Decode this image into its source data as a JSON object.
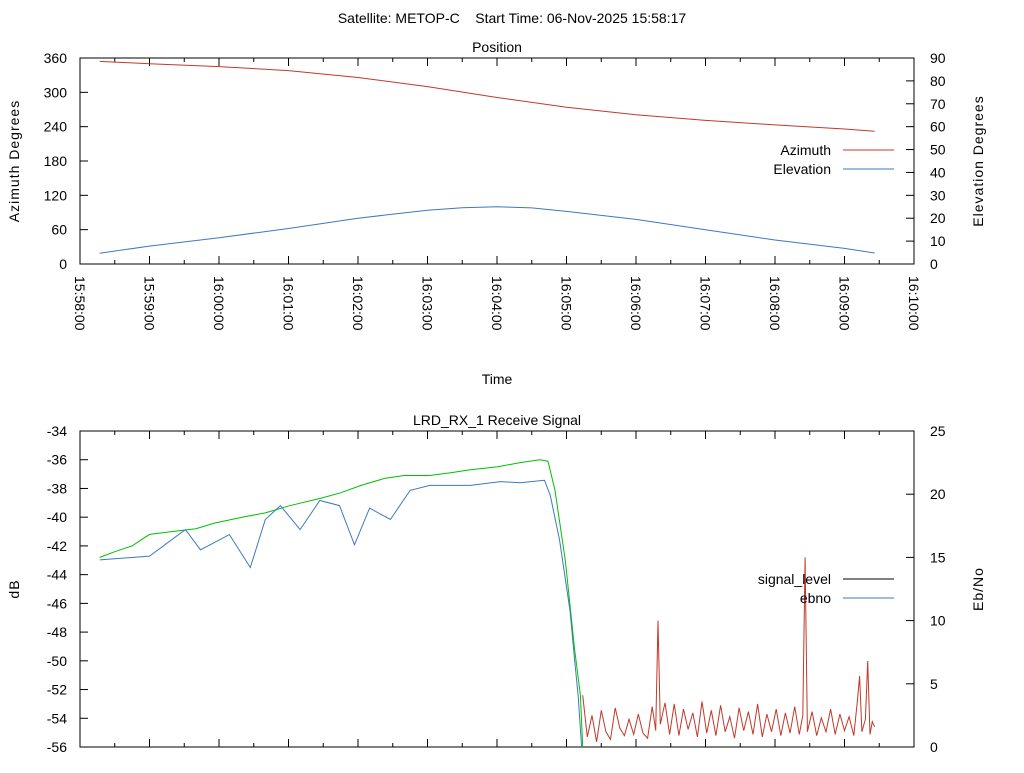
{
  "title": "Satellite: METOP-C    Start Time: 06-Nov-2025 15:58:17",
  "chart_data": [
    {
      "type": "line",
      "title": "Position",
      "xlabel": "Time",
      "ylabel": "Azimuth Degrees",
      "y2label": "Elevation Degrees",
      "x_unit": "seconds after 15:58:00",
      "xlim": [
        0,
        720
      ],
      "ylim": [
        0,
        360
      ],
      "y2lim": [
        0,
        90
      ],
      "xticks": [
        0,
        60,
        120,
        180,
        240,
        300,
        360,
        420,
        480,
        540,
        600,
        660,
        720
      ],
      "xtick_labels": [
        "15:58:00",
        "15:59:00",
        "16:00:00",
        "16:01:00",
        "16:02:00",
        "16:03:00",
        "16:04:00",
        "16:05:00",
        "16:06:00",
        "16:07:00",
        "16:08:00",
        "16:09:00",
        "16:10:00"
      ],
      "yticks": [
        0,
        60,
        120,
        180,
        240,
        300,
        360
      ],
      "y2ticks": [
        0,
        10,
        20,
        30,
        40,
        50,
        60,
        70,
        80,
        90
      ],
      "legend": "right",
      "series": [
        {
          "name": "Azimuth",
          "axis": "y",
          "color": "#c0392b",
          "x": [
            17,
            60,
            120,
            180,
            240,
            300,
            360,
            420,
            480,
            540,
            600,
            660,
            686
          ],
          "values": [
            354,
            350,
            345,
            338,
            326,
            310,
            291,
            274,
            261,
            251,
            243,
            236,
            232
          ]
        },
        {
          "name": "Elevation",
          "axis": "y2",
          "color": "#3c78c3",
          "x": [
            17,
            60,
            120,
            180,
            240,
            300,
            330,
            360,
            390,
            420,
            480,
            540,
            600,
            660,
            686
          ],
          "values": [
            4.7,
            7.8,
            11.5,
            15.5,
            20,
            23.5,
            24.6,
            25,
            24.5,
            23,
            19.5,
            15,
            10.5,
            6.8,
            4.8
          ]
        }
      ]
    },
    {
      "type": "line",
      "title": "LRD_RX_1 Receive Signal",
      "xlabel": "",
      "ylabel": "dB",
      "y2label": "Eb/No",
      "x_unit": "seconds after 15:58:00",
      "xlim": [
        0,
        720
      ],
      "ylim": [
        -56,
        -34
      ],
      "y2lim": [
        0,
        25
      ],
      "yticks": [
        -56,
        -54,
        -52,
        -50,
        -48,
        -46,
        -44,
        -42,
        -40,
        -38,
        -36,
        -34
      ],
      "y2ticks": [
        0,
        5,
        10,
        15,
        20,
        25
      ],
      "legend": "right",
      "legend_entries": [
        {
          "name": "signal_level",
          "color": "#000000"
        },
        {
          "name": "ebno",
          "color": "#3c78c3"
        }
      ],
      "series": [
        {
          "name": "signal_level",
          "axis": "y",
          "color": "#00c000",
          "x": [
            17,
            30,
            45,
            60,
            80,
            100,
            117,
            140,
            160,
            181,
            207,
            225,
            242,
            263,
            280,
            302,
            320,
            337,
            360,
            380,
            397,
            404,
            410,
            419,
            427,
            432,
            434
          ],
          "values": [
            -42.8,
            -42.4,
            -42.0,
            -41.2,
            -41.0,
            -40.8,
            -40.4,
            -40.0,
            -39.7,
            -39.2,
            -38.7,
            -38.3,
            -37.8,
            -37.3,
            -37.1,
            -37.1,
            -36.9,
            -36.7,
            -36.5,
            -36.2,
            -36.0,
            -36.1,
            -38.1,
            -43.0,
            -49.2,
            -52.4,
            -56.0
          ]
        },
        {
          "name": "ebno",
          "axis": "y2",
          "color": "#3c78c3",
          "x": [
            17,
            60,
            91,
            104,
            129,
            147,
            160,
            173,
            190,
            207,
            224,
            237,
            250,
            268,
            285,
            302,
            337,
            363,
            380,
            401,
            406,
            414,
            423,
            427,
            430,
            433
          ],
          "values": [
            14.8,
            15.1,
            17.2,
            15.6,
            16.8,
            14.2,
            18.0,
            19.1,
            17.2,
            19.5,
            19.1,
            16.0,
            18.9,
            18.0,
            20.3,
            20.7,
            20.7,
            21.0,
            20.9,
            21.1,
            19.9,
            16.4,
            10.8,
            6.9,
            4.1,
            0
          ]
        },
        {
          "name": "",
          "axis": "y2",
          "color": "#c0392b",
          "x": [
            434,
            438,
            442,
            446,
            450,
            454,
            458,
            462,
            466,
            470,
            474,
            478,
            482,
            486,
            490,
            494,
            497,
            499,
            501,
            505,
            509,
            513,
            517,
            521,
            525,
            529,
            533,
            537,
            541,
            545,
            549,
            553,
            557,
            561,
            565,
            569,
            573,
            577,
            581,
            585,
            589,
            593,
            597,
            601,
            605,
            609,
            613,
            617,
            621,
            624,
            626,
            628,
            632,
            636,
            640,
            644,
            648,
            652,
            656,
            660,
            664,
            668,
            671,
            673,
            675,
            678,
            680,
            682,
            684,
            686
          ],
          "values": [
            4.1,
            0.8,
            2.5,
            0.4,
            2.9,
            1.2,
            0.6,
            3.1,
            1.5,
            0.9,
            2.2,
            1.0,
            2.6,
            1.1,
            0.7,
            3.2,
            1.3,
            10.0,
            1.8,
            3.5,
            1.0,
            3.4,
            0.9,
            3.0,
            1.4,
            2.7,
            0.8,
            3.6,
            1.1,
            2.9,
            0.9,
            3.3,
            1.2,
            2.4,
            0.7,
            3.1,
            1.3,
            2.8,
            1.0,
            3.4,
            0.8,
            2.6,
            1.2,
            3.0,
            0.9,
            2.7,
            1.1,
            3.2,
            1.0,
            2.5,
            15.0,
            1.2,
            2.8,
            0.9,
            2.3,
            1.2,
            3.0,
            1.0,
            2.6,
            1.3,
            2.4,
            0.9,
            3.5,
            5.6,
            1.2,
            2.2,
            6.8,
            1.0,
            2.0,
            1.6
          ]
        }
      ]
    }
  ]
}
